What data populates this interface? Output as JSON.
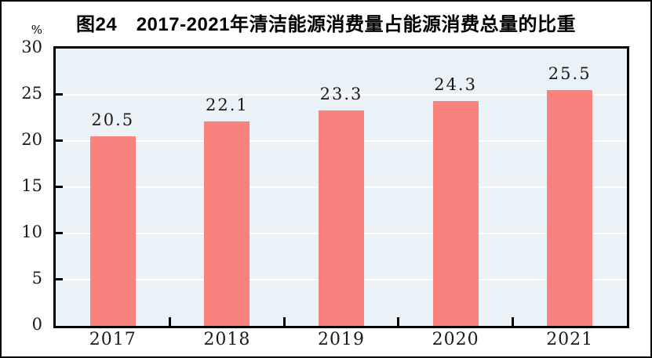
{
  "header": {
    "title": "图24　2017-2021年清洁能源消费量占能源消费总量的比重"
  },
  "chart_data": {
    "type": "bar",
    "title": "图24　2017-2021年清洁能源消费量占能源消费总量的比重",
    "categories": [
      "2017",
      "2018",
      "2019",
      "2020",
      "2021"
    ],
    "values": [
      20.5,
      22.1,
      23.3,
      24.3,
      25.5
    ],
    "value_labels": [
      "20.5",
      "22.1",
      "23.3",
      "24.3",
      "25.5"
    ],
    "xlabel": "",
    "ylabel": "%",
    "ylim": [
      0,
      30
    ],
    "yticks": [
      0,
      5,
      10,
      15,
      20,
      25,
      30
    ],
    "grid": true,
    "legend_position": "none",
    "colors": {
      "bar": "#f9827f",
      "plot_background": "#eaf2f8",
      "gridline": "#ffffff",
      "axis": "#000000",
      "text": "#1a1a1a",
      "outer_border": "#000000"
    }
  }
}
